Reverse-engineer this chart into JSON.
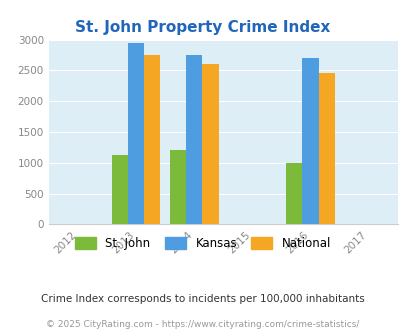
{
  "title": "St. John Property Crime Index",
  "title_color": "#2266bb",
  "years": [
    2012,
    2013,
    2014,
    2015,
    2016,
    2017
  ],
  "bar_years": [
    2013,
    2014,
    2016
  ],
  "st_john": [
    1130,
    1200,
    1000
  ],
  "kansas": [
    2950,
    2750,
    2700
  ],
  "national": [
    2750,
    2600,
    2460
  ],
  "st_john_color": "#7cba3c",
  "kansas_color": "#4d9de0",
  "national_color": "#f5a623",
  "bg_color": "#ddeef6",
  "ylim": [
    0,
    3000
  ],
  "yticks": [
    0,
    500,
    1000,
    1500,
    2000,
    2500,
    3000
  ],
  "bar_width": 0.28,
  "footnote1": "Crime Index corresponds to incidents per 100,000 inhabitants",
  "footnote2": "© 2025 CityRating.com - https://www.cityrating.com/crime-statistics/",
  "legend_labels": [
    "St. John",
    "Kansas",
    "National"
  ]
}
